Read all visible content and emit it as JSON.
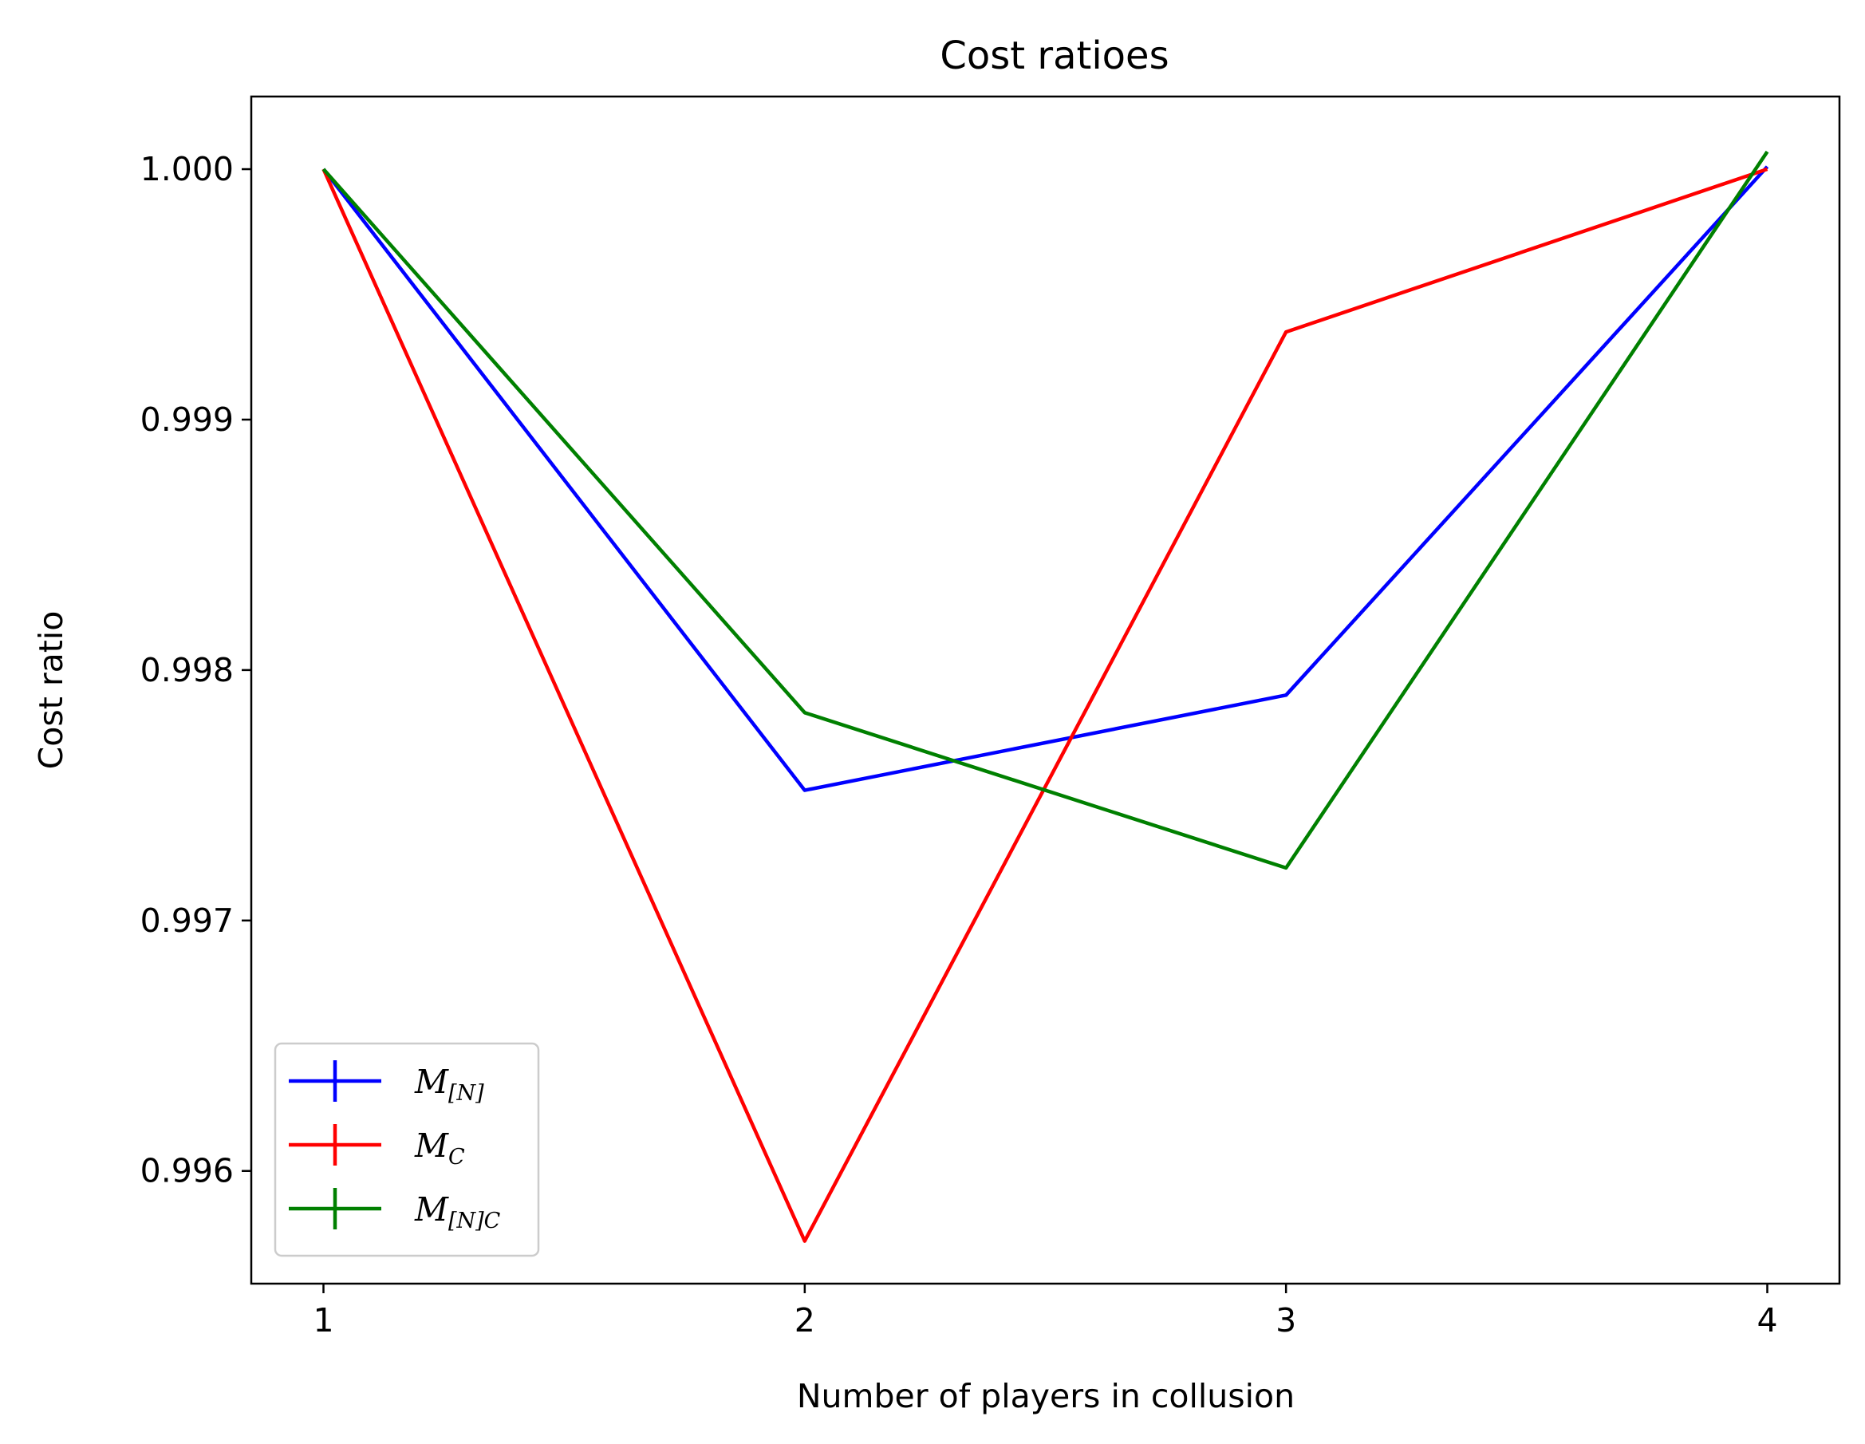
{
  "chart_data": {
    "type": "line",
    "title": "Cost ratioes",
    "xlabel": "Number of players in collusion",
    "ylabel": "Cost ratio",
    "x": [
      1,
      2,
      3,
      4
    ],
    "x_ticks": [
      "1",
      "2",
      "3",
      "4"
    ],
    "xlim": [
      0.85,
      4.15
    ],
    "ylim": [
      0.99555,
      1.00029
    ],
    "y_ticks": [
      "0.996",
      "0.997",
      "0.998",
      "0.999",
      "1.000"
    ],
    "y_tick_values": [
      0.996,
      0.997,
      0.998,
      0.999,
      1.0
    ],
    "grid": false,
    "legend_position": "lower-left",
    "series": [
      {
        "name": "M",
        "subscript": "[N]",
        "color": "#0000ff",
        "values": [
          1.0,
          0.99752,
          0.9979,
          1.00001
        ]
      },
      {
        "name": "M",
        "subscript": "C",
        "color": "#ff0000",
        "values": [
          1.0,
          0.99572,
          0.99935,
          1.0
        ]
      },
      {
        "name": "M",
        "subscript": "[N]C",
        "color": "#008000",
        "values": [
          1.0,
          0.99783,
          0.99721,
          1.00007
        ]
      }
    ]
  }
}
